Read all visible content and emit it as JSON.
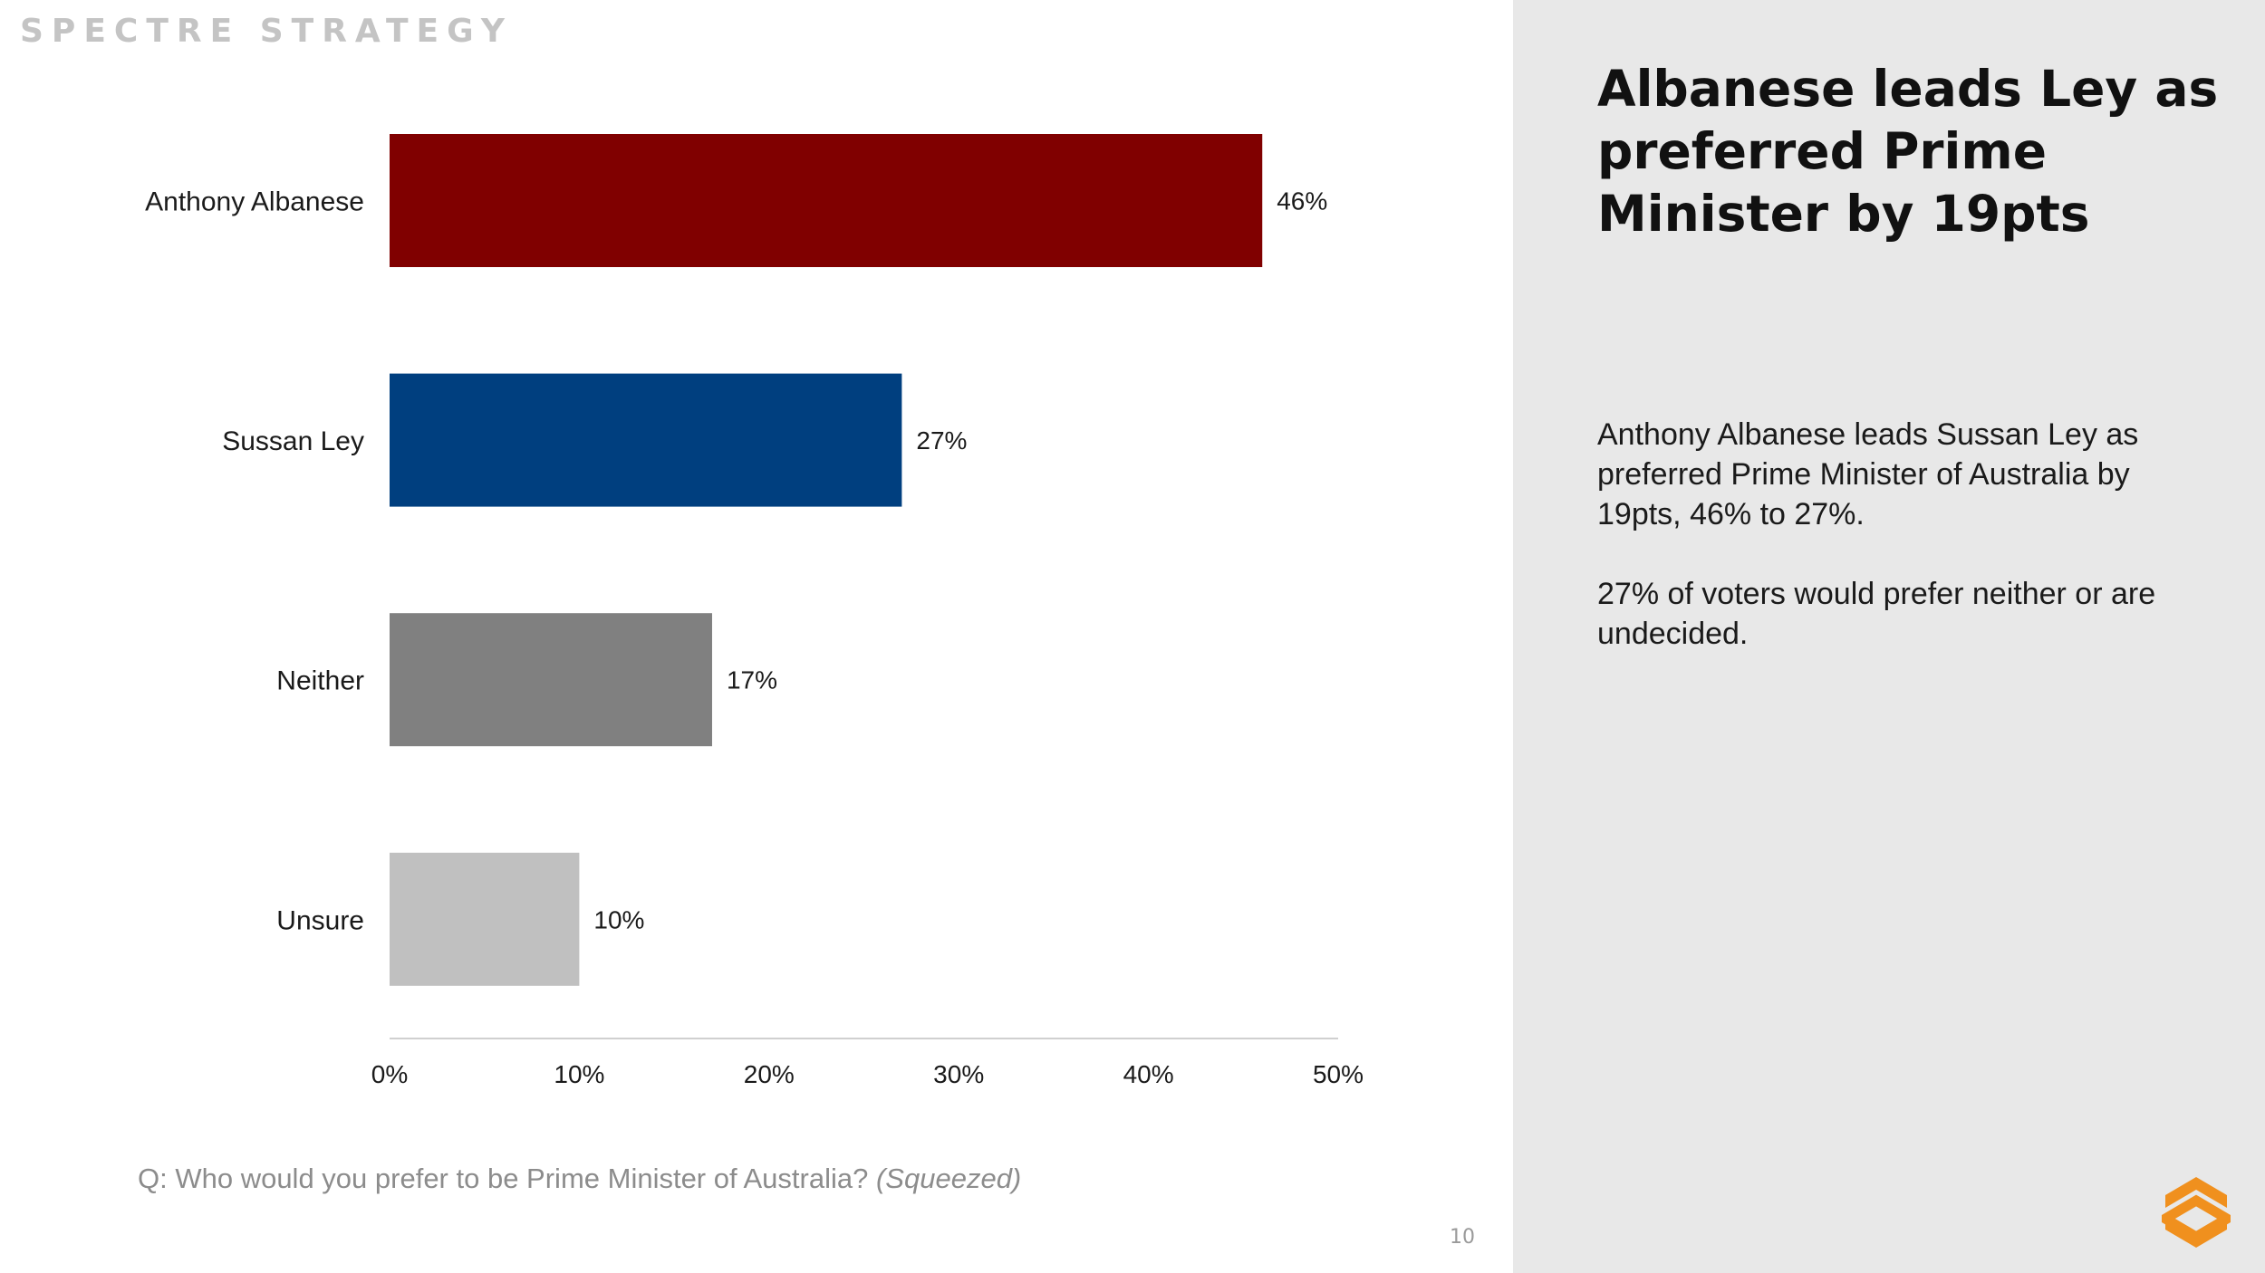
{
  "brand": "SPECTRE STRATEGY",
  "question": {
    "text": "Q: Who would you prefer to be Prime Minister of Australia?",
    "qualifier": "(Squeezed)"
  },
  "page_number": "10",
  "side_panel": {
    "headline": "Albanese leads Ley as preferred Prime Minister by 19pts",
    "paragraphs": [
      "Anthony Albanese leads Sussan Ley as preferred Prime Minister of Australia by 19pts, 46% to 27%.",
      "27% of voters would prefer neither or are undecided."
    ]
  },
  "colors": {
    "accent_logo": "#f0901e",
    "panel_bg": "#e8e8e8"
  },
  "chart_data": {
    "type": "bar",
    "orientation": "horizontal",
    "categories": [
      "Anthony Albanese",
      "Sussan Ley",
      "Neither",
      "Unsure"
    ],
    "values": [
      46,
      27,
      17,
      10
    ],
    "data_labels": [
      "46%",
      "27%",
      "17%",
      "10%"
    ],
    "colors": [
      "#800000",
      "#003f7f",
      "#808080",
      "#c0c0c0"
    ],
    "xlim": [
      0,
      50
    ],
    "xticks": [
      0,
      10,
      20,
      30,
      40,
      50
    ],
    "xtick_labels": [
      "0%",
      "10%",
      "20%",
      "30%",
      "40%",
      "50%"
    ],
    "grid": false,
    "legend": "none"
  }
}
